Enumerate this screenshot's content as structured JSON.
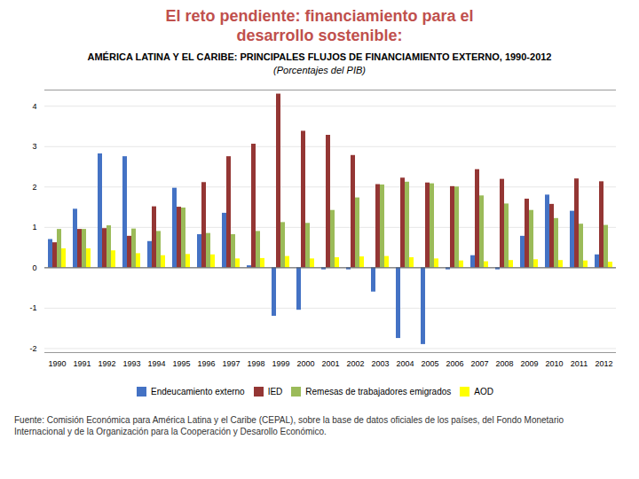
{
  "chart_data": {
    "type": "bar",
    "title": "El reto pendiente: financiamiento para el\ndesarrollo sostenible:",
    "subtitle": [
      "AMÉRICA LATINA Y EL CARIBE: PRINCIPALES FLUJOS DE FINANCIAMIENTO EXTERNO, 1990-2012",
      "(Porcentajes del PIB)"
    ],
    "caption": [
      "Fuente: Comisión Económica para América Latina y el Caribe (CEPAL), sobre la base de datos oficiales de los países, del Fondo Monetario",
      "Internacional y de la Organización para la Cooperación y Desarollo Económico."
    ],
    "categories": [
      "1990",
      "1991",
      "1992",
      "1993",
      "1994",
      "1995",
      "1996",
      "1997",
      "1998",
      "1999",
      "2000",
      "2001",
      "2002",
      "2003",
      "2004",
      "2005",
      "2006",
      "2007",
      "2008",
      "2009",
      "2010",
      "2011",
      "2012"
    ],
    "series": [
      {
        "name": "Endeucamiento externo",
        "color": "#4472C4",
        "values": [
          0.7,
          1.45,
          2.82,
          2.75,
          0.65,
          1.97,
          0.82,
          1.35,
          0.05,
          -1.2,
          -1.05,
          -0.05,
          -0.05,
          -0.6,
          -1.75,
          -1.9,
          -0.05,
          0.3,
          -0.05,
          0.78,
          1.8,
          1.4,
          0.32
        ]
      },
      {
        "name": "IED",
        "color": "#943634",
        "values": [
          0.62,
          0.95,
          0.97,
          0.78,
          1.51,
          1.5,
          2.11,
          2.75,
          3.06,
          4.3,
          3.38,
          3.28,
          2.78,
          2.06,
          2.22,
          2.1,
          2.01,
          2.43,
          2.19,
          1.7,
          1.57,
          2.2,
          2.13
        ]
      },
      {
        "name": "Remesas de trabajadores emigrados",
        "color": "#9BBB59",
        "values": [
          0.95,
          0.95,
          1.04,
          0.96,
          0.9,
          1.48,
          0.85,
          0.82,
          0.9,
          1.12,
          1.1,
          1.42,
          1.73,
          2.05,
          2.12,
          2.08,
          2.0,
          1.78,
          1.58,
          1.42,
          1.22,
          1.08,
          1.05
        ]
      },
      {
        "name": "AOD",
        "color": "#FFFF00",
        "values": [
          0.47,
          0.47,
          0.42,
          0.35,
          0.3,
          0.33,
          0.32,
          0.22,
          0.23,
          0.28,
          0.22,
          0.25,
          0.27,
          0.28,
          0.25,
          0.22,
          0.17,
          0.15,
          0.18,
          0.2,
          0.18,
          0.17,
          0.14
        ]
      }
    ],
    "ylim": [
      -2.1,
      4.4
    ],
    "yticks": [
      -2,
      -1,
      0,
      1,
      2,
      3,
      4
    ],
    "grid": true,
    "legend": "bottom"
  }
}
